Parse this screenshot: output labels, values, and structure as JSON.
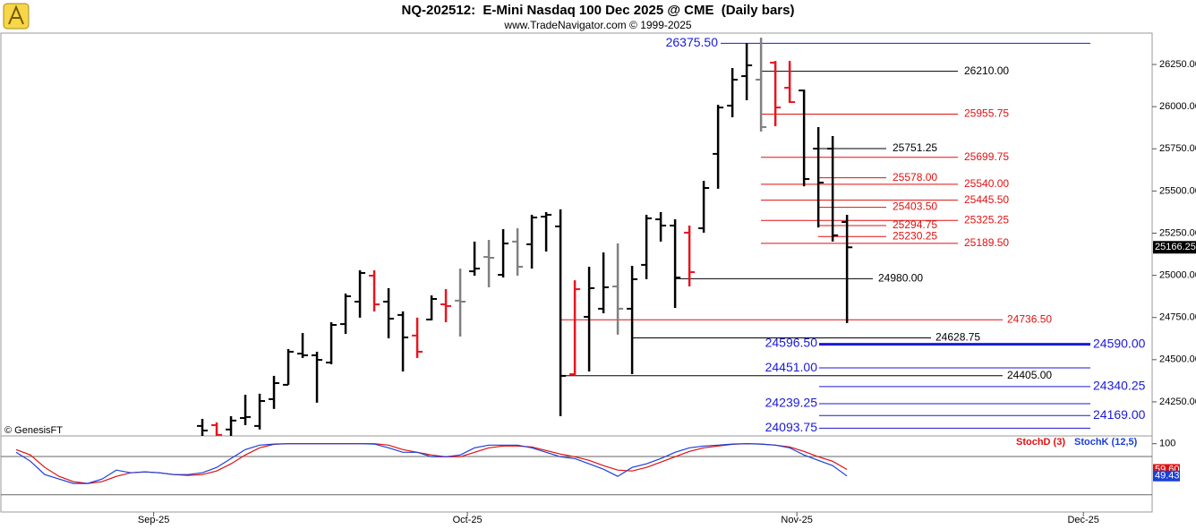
{
  "chart_data": {
    "type": "ohlc",
    "title": "NQ-202512:  E-Mini Nasdaq 100 Dec 2025 @ CME  (Daily bars)",
    "subtitle": "www.TradeNavigator.com © 1999-2025",
    "copyright": "© GenesisFT",
    "x": [
      0,
      1,
      2,
      3,
      4,
      5,
      6,
      7,
      8,
      9,
      10,
      11,
      12,
      13,
      14,
      15,
      16,
      17,
      18,
      19,
      20,
      21,
      22,
      23,
      24,
      25,
      26,
      27,
      28,
      29,
      30,
      31,
      32,
      33,
      34,
      35,
      36,
      37,
      38,
      39,
      40,
      41,
      42,
      43,
      44,
      45
    ],
    "xlim": [
      -14,
      66.3
    ],
    "xticks": [
      {
        "value": -3.4,
        "label": "Sep-25"
      },
      {
        "value": 18.5,
        "label": "Oct-25"
      },
      {
        "value": 41.5,
        "label": "Nov-25"
      },
      {
        "value": 61.5,
        "label": "Dec-25"
      }
    ],
    "ylim": [
      24048,
      26436
    ],
    "yticks": [
      {
        "value": 24250,
        "label": "24250.00"
      },
      {
        "value": 24500,
        "label": "24500.00"
      },
      {
        "value": 24750,
        "label": "24750.00"
      },
      {
        "value": 25000,
        "label": "25000.00"
      },
      {
        "value": 25250,
        "label": "25250.00"
      },
      {
        "value": 25500,
        "label": "25500.00"
      },
      {
        "value": 25750,
        "label": "25750.00"
      },
      {
        "value": 26000,
        "label": "26000.00"
      },
      {
        "value": 26250,
        "label": "26250.00"
      }
    ],
    "open": [
      24107,
      24112,
      24086,
      24154,
      24107,
      24266,
      24351,
      24536,
      24526,
      24483,
      24711,
      24844,
      24998,
      24844,
      24765,
      24643,
      24738,
      24828,
      24850,
      25024,
      25109,
      25003,
      25200,
      25184,
      25348,
      25290,
      24414,
      24754,
      24802,
      24934,
      24802,
      25062,
      25332,
      25295,
      25253,
      25279,
      25720,
      26006,
      26181,
      26160,
      26261,
      26112,
      26096,
      25751,
      25751,
      25316
    ],
    "high": [
      24149,
      24128,
      24165,
      24292,
      24298,
      24404,
      24563,
      24658,
      24547,
      24722,
      24892,
      25030,
      25030,
      24924,
      24786,
      24749,
      24881,
      24918,
      25040,
      25200,
      25210,
      25274,
      25279,
      25359,
      25375,
      25391,
      24971,
      25051,
      25136,
      25189,
      25056,
      25359,
      25375,
      25332,
      25295,
      25560,
      26011,
      26229,
      26375.5,
      26409,
      26271,
      26271,
      26101,
      25879,
      25826,
      25359
    ],
    "low": [
      24048,
      24048,
      24048,
      24112,
      24086,
      24208,
      24351,
      24510,
      24245,
      24473,
      24653,
      24749,
      24786,
      24627,
      24430,
      24510,
      24733,
      24722,
      24637,
      24998,
      24929,
      24987,
      24998,
      25040,
      25141,
      24165,
      24404,
      24430,
      24775,
      24648,
      24414,
      24977,
      25200,
      24807,
      24934,
      25253,
      25513,
      25937,
      26038,
      25852,
      25884,
      26022,
      25528,
      25284,
      25200,
      24717
    ],
    "close": [
      24080,
      24054,
      24139,
      24160,
      24255,
      24361,
      24547,
      24526,
      24499,
      24706,
      24876,
      25014,
      24828,
      24743,
      24632,
      24547,
      24860,
      24818,
      24844,
      25040,
      25104,
      25189,
      25051,
      25343,
      25359,
      24404,
      24918,
      24924,
      24929,
      24802,
      24977,
      25338,
      25295,
      24987,
      25019,
      25518,
      25995,
      26160,
      26245,
      25879,
      25995,
      26027,
      25571,
      25550,
      25237,
      25166.25
    ],
    "bar_colors": [
      "#000000",
      "#e8141e",
      "#000000",
      "#000000",
      "#000000",
      "#000000",
      "#000000",
      "#000000",
      "#000000",
      "#000000",
      "#000000",
      "#000000",
      "#e8141e",
      "#000000",
      "#000000",
      "#e8141e",
      "#000000",
      "#e8141e",
      "#808080",
      "#000000",
      "#808080",
      "#000000",
      "#808080",
      "#000000",
      "#000000",
      "#000000",
      "#e8141e",
      "#000000",
      "#000000",
      "#808080",
      "#000000",
      "#000000",
      "#000000",
      "#000000",
      "#e8141e",
      "#000000",
      "#000000",
      "#000000",
      "#000000",
      "#808080",
      "#e8141e",
      "#e8141e",
      "#000000",
      "#000000",
      "#000000",
      "#000000"
    ],
    "last_price": {
      "value": 25166.25,
      "label": "25166.25"
    },
    "levels": [
      {
        "value": 26375.5,
        "label": "26375.50",
        "color": "#1a1ad8"
      },
      {
        "value": 26210,
        "label": "26210.00",
        "color": "#000000"
      },
      {
        "value": 25955.75,
        "label": "25955.75",
        "color": "#e01010"
      },
      {
        "value": 25751.25,
        "label": "25751.25",
        "color": "#000000"
      },
      {
        "value": 25699.75,
        "label": "25699.75",
        "color": "#e01010"
      },
      {
        "value": 25578,
        "label": "25578.00",
        "color": "#e01010"
      },
      {
        "value": 25540,
        "label": "25540.00",
        "color": "#e01010"
      },
      {
        "value": 25445.5,
        "label": "25445.50",
        "color": "#e01010"
      },
      {
        "value": 25403.5,
        "label": "25403.50",
        "color": "#e01010"
      },
      {
        "value": 25325.25,
        "label": "25325.25",
        "color": "#e01010"
      },
      {
        "value": 25294.75,
        "label": "25294.75",
        "color": "#e01010"
      },
      {
        "value": 25230.25,
        "label": "25230.25",
        "color": "#e01010"
      },
      {
        "value": 25189.5,
        "label": "25189.50",
        "color": "#e01010"
      },
      {
        "value": 24980,
        "label": "24980.00",
        "color": "#000000"
      },
      {
        "value": 24736.5,
        "label": "24736.50",
        "color": "#e01010"
      },
      {
        "value": 24628.75,
        "label": "24628.75",
        "color": "#000000"
      },
      {
        "value": 24596.5,
        "label": "24596.50",
        "color": "#1a1ad8"
      },
      {
        "value": 24590,
        "label": "24590.00",
        "color": "#1a1ad8"
      },
      {
        "value": 24451,
        "label": "24451.00",
        "color": "#1a1ad8"
      },
      {
        "value": 24405,
        "label": "24405.00",
        "color": "#000000"
      },
      {
        "value": 24340.25,
        "label": "24340.25",
        "color": "#1a1ad8"
      },
      {
        "value": 24239.25,
        "label": "24239.25",
        "color": "#1a1ad8"
      },
      {
        "value": 24169,
        "label": "24169.00",
        "color": "#1a1ad8"
      },
      {
        "value": 24093.75,
        "label": "24093.75",
        "color": "#1a1ad8"
      }
    ],
    "stochastic": {
      "type": "line",
      "x": [
        -13,
        -12,
        -11,
        -10,
        -9,
        -8,
        -7,
        -6,
        -5,
        -4,
        -3,
        -2,
        -1,
        0,
        1,
        2,
        3,
        4,
        5,
        6,
        7,
        8,
        9,
        10,
        11,
        12,
        13,
        14,
        15,
        16,
        17,
        18,
        19,
        20,
        21,
        22,
        23,
        24,
        25,
        26,
        27,
        28,
        29,
        30,
        31,
        32,
        33,
        34,
        35,
        36,
        37,
        38,
        39,
        40,
        41,
        42,
        43,
        44,
        45
      ],
      "ylim": [
        -7,
        112.2
      ],
      "yticks": [
        100
      ],
      "grid_levels": [
        80,
        20
      ],
      "series": [
        {
          "name": "StochD (3)",
          "color": "#e01010",
          "last_label": "59.60",
          "values": [
            90.7,
            82.3,
            62.8,
            48.8,
            40.5,
            37.7,
            40.5,
            48.8,
            54.4,
            55.8,
            54.4,
            51.6,
            50.2,
            51.6,
            57.2,
            68.4,
            82.3,
            93.5,
            99.0,
            100,
            100,
            100,
            100,
            100,
            100,
            100,
            97.7,
            90.7,
            86.5,
            82.3,
            79.5,
            79.5,
            86.5,
            93.5,
            96.3,
            96.3,
            94.9,
            89.3,
            83.7,
            79.5,
            73.9,
            65.6,
            58.6,
            57.2,
            62.8,
            71.1,
            79.5,
            87.9,
            93.5,
            96.3,
            99.0,
            100,
            99.5,
            97.7,
            94.9,
            87.9,
            79.5,
            72.5,
            59.6
          ]
        },
        {
          "name": "StochK (12,5)",
          "color": "#1a3fd8",
          "last_label": "49.43",
          "values": [
            86.5,
            72.5,
            51.6,
            44.6,
            37.7,
            37.7,
            44.6,
            58.6,
            54.4,
            55.8,
            54.4,
            51.6,
            51.6,
            54.4,
            62.8,
            76.7,
            90.7,
            97.7,
            99.5,
            100,
            100,
            100,
            100,
            100,
            100,
            99.5,
            93.5,
            86.5,
            86.5,
            79.5,
            79.5,
            82.3,
            93.5,
            97.7,
            97.7,
            97.7,
            93.5,
            86.5,
            79.5,
            76.7,
            68.4,
            60.0,
            48.8,
            62.8,
            68.4,
            76.7,
            86.5,
            93.5,
            96.3,
            97.7,
            99.5,
            100,
            99.5,
            97.7,
            93.5,
            82.3,
            73.9,
            65.6,
            49.43
          ]
        }
      ]
    }
  }
}
